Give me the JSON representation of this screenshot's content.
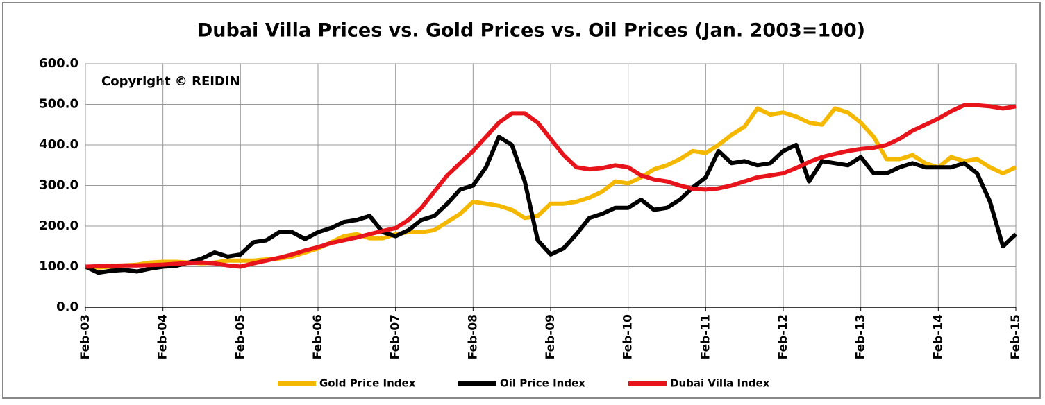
{
  "chart_data": {
    "type": "line",
    "title": "Dubai Villa Prices vs. Gold Prices vs. Oil Prices (Jan. 2003=100)",
    "annotation": "Copyright © REIDIN",
    "categories": [
      "Feb-03",
      null,
      null,
      null,
      null,
      null,
      "Feb-04",
      null,
      null,
      null,
      null,
      null,
      "Feb-05",
      null,
      null,
      null,
      null,
      null,
      "Feb-06",
      null,
      null,
      null,
      null,
      null,
      "Feb-07",
      null,
      null,
      null,
      null,
      null,
      "Feb-08",
      null,
      null,
      null,
      null,
      null,
      "Feb-09",
      null,
      null,
      null,
      null,
      null,
      "Feb-10",
      null,
      null,
      null,
      null,
      null,
      "Feb-11",
      null,
      null,
      null,
      null,
      null,
      "Feb-12",
      null,
      null,
      null,
      null,
      null,
      "Feb-13",
      null,
      null,
      null,
      null,
      null,
      "Feb-14",
      null,
      null,
      null,
      null,
      null,
      "Feb-15"
    ],
    "series": [
      {
        "name": "Gold Price Index",
        "color": "#f5b800",
        "values": [
          100,
          98,
          100,
          103,
          105,
          110,
          112,
          112,
          110,
          108,
          110,
          115,
          115,
          115,
          118,
          120,
          125,
          135,
          145,
          160,
          175,
          180,
          170,
          170,
          180,
          185,
          185,
          190,
          210,
          230,
          260,
          255,
          250,
          240,
          220,
          225,
          255,
          255,
          260,
          270,
          285,
          310,
          305,
          320,
          340,
          350,
          365,
          385,
          380,
          400,
          425,
          445,
          490,
          475,
          480,
          470,
          455,
          450,
          490,
          480,
          455,
          420,
          365,
          365,
          375,
          355,
          345,
          370,
          360,
          365,
          345,
          330,
          345
        ]
      },
      {
        "name": "Oil Price Index",
        "color": "#000000",
        "values": [
          100,
          85,
          90,
          92,
          88,
          95,
          100,
          102,
          110,
          120,
          135,
          125,
          130,
          160,
          165,
          185,
          185,
          168,
          185,
          195,
          210,
          215,
          225,
          185,
          175,
          190,
          215,
          225,
          255,
          290,
          300,
          345,
          420,
          400,
          310,
          165,
          130,
          145,
          180,
          220,
          230,
          245,
          245,
          265,
          240,
          245,
          265,
          295,
          320,
          385,
          355,
          360,
          350,
          355,
          385,
          400,
          310,
          360,
          355,
          350,
          370,
          330,
          330,
          345,
          355,
          345,
          345,
          345,
          355,
          330,
          260,
          150,
          180
        ]
      },
      {
        "name": "Dubai Villa Index",
        "color": "#e8141b",
        "values": [
          100,
          101,
          102,
          103,
          103,
          104,
          105,
          107,
          109,
          110,
          108,
          103,
          100,
          108,
          115,
          122,
          130,
          140,
          148,
          158,
          165,
          172,
          180,
          188,
          195,
          215,
          245,
          285,
          325,
          355,
          385,
          420,
          455,
          478,
          478,
          455,
          415,
          375,
          345,
          340,
          343,
          350,
          345,
          325,
          315,
          310,
          300,
          292,
          290,
          293,
          300,
          310,
          320,
          325,
          330,
          343,
          358,
          370,
          378,
          385,
          390,
          393,
          400,
          415,
          435,
          450,
          465,
          483,
          498,
          498,
          495,
          490,
          495
        ]
      }
    ],
    "ylim": [
      0,
      600
    ],
    "yticks": [
      {
        "value": 0,
        "label": "0.0"
      },
      {
        "value": 100,
        "label": "100.0"
      },
      {
        "value": 200,
        "label": "200.0"
      },
      {
        "value": 300,
        "label": "300.0"
      },
      {
        "value": 400,
        "label": "400.0"
      },
      {
        "value": 500,
        "label": "500.0"
      },
      {
        "value": 600,
        "label": "600.0"
      }
    ],
    "grid": true,
    "legend": "bottom"
  }
}
